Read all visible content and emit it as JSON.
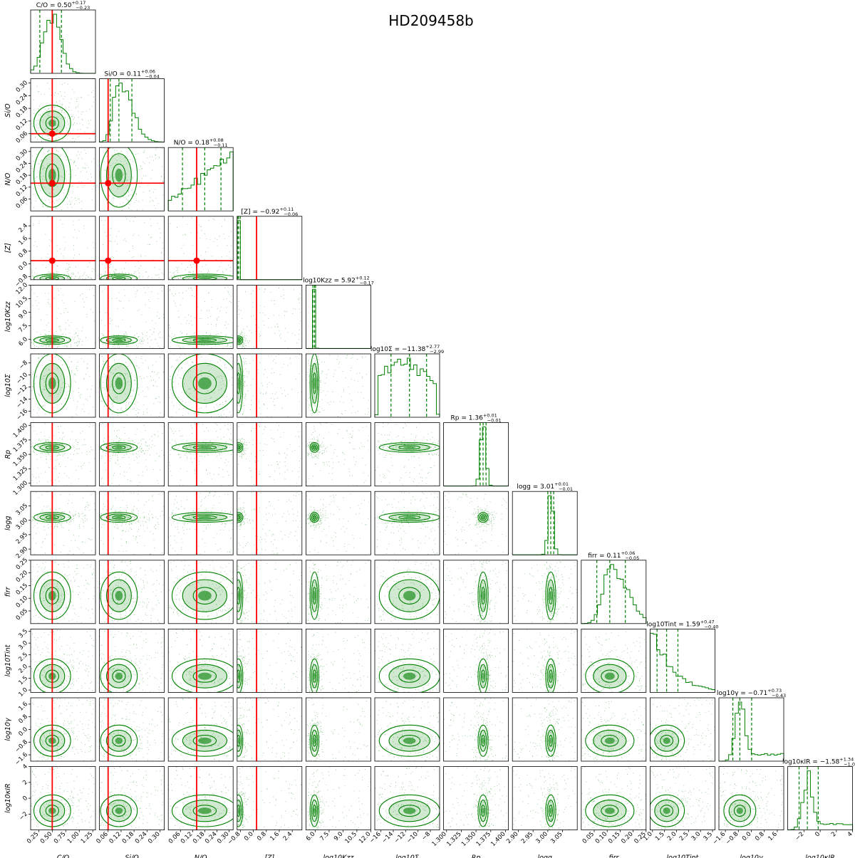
{
  "chart_data": {
    "type": "corner",
    "title": "HD209458b",
    "colors": {
      "samples": "#008000",
      "truth": "#ff0000",
      "frame": "#000000"
    },
    "params": [
      {
        "label": "C/O",
        "title": "C/O = 0.50",
        "errup": "+0.17",
        "errdn": "−0.23",
        "range": [
          0.1,
          1.3
        ],
        "ticks": [
          0.25,
          0.5,
          0.75,
          1.0,
          1.25
        ],
        "tick_labels": [
          "0.25",
          "0.50",
          "0.75",
          "1.00",
          "1.25"
        ],
        "median": 0.5,
        "lo": 0.27,
        "hi": 0.67,
        "truth": 0.5,
        "shape": "peak"
      },
      {
        "label": "Si/O",
        "title": "Si/O = 0.11",
        "errup": "+0.06",
        "errdn": "−0.04",
        "range": [
          0.02,
          0.32
        ],
        "ticks": [
          0.06,
          0.12,
          0.18,
          0.24,
          0.3
        ],
        "tick_labels": [
          "0.06",
          "0.12",
          "0.18",
          "0.24",
          "0.30"
        ],
        "median": 0.11,
        "lo": 0.07,
        "hi": 0.17,
        "truth": 0.06,
        "shape": "skew"
      },
      {
        "label": "N/O",
        "title": "N/O = 0.18",
        "errup": "+0.08",
        "errdn": "−0.11",
        "range": [
          0.0,
          0.32
        ],
        "ticks": [
          0.06,
          0.12,
          0.18,
          0.24,
          0.3
        ],
        "tick_labels": [
          "0.06",
          "0.12",
          "0.18",
          "0.24",
          "0.30"
        ],
        "median": 0.18,
        "lo": 0.07,
        "hi": 0.26,
        "truth": 0.14,
        "shape": "rising"
      },
      {
        "label": "[Z]",
        "title": "[Z] = −0.92",
        "errup": "+0.11",
        "errdn": "−0.06",
        "range": [
          -1.0,
          3.0
        ],
        "ticks": [
          -0.8,
          0.0,
          0.8,
          1.6,
          2.4
        ],
        "tick_labels": [
          "−0.8",
          "0.0",
          "0.8",
          "1.6",
          "2.4"
        ],
        "median": -0.92,
        "lo": -0.98,
        "hi": -0.81,
        "truth": 0.2,
        "shape": "spike"
      },
      {
        "label": "log10Kzz",
        "title": "log10Kzz = 5.92",
        "errup": "+0.12",
        "errdn": "−0.17",
        "range": [
          5.0,
          12.0
        ],
        "ticks": [
          6.0,
          7.5,
          9.0,
          10.5,
          12.0
        ],
        "tick_labels": [
          "6.0",
          "7.5",
          "9.0",
          "10.5",
          "12.0"
        ],
        "median": 5.92,
        "lo": 5.75,
        "hi": 6.04,
        "truth": null,
        "shape": "spike"
      },
      {
        "label": "log10Σ",
        "title": "log10Σ = −11.38",
        "errup": "+2.77",
        "errdn": "−2.99",
        "range": [
          -17.0,
          -6.5
        ],
        "ticks": [
          -16,
          -14,
          -12,
          -10,
          -8
        ],
        "tick_labels": [
          "−16",
          "−14",
          "−12",
          "−10",
          "−8"
        ],
        "median": -11.38,
        "lo": -14.37,
        "hi": -8.61,
        "truth": null,
        "shape": "flat"
      },
      {
        "label": "Rp",
        "title": "Rp = 1.36",
        "errup": "+0.01",
        "errdn": "−0.01",
        "range": [
          1.295,
          1.405
        ],
        "ticks": [
          1.3,
          1.325,
          1.35,
          1.375,
          1.4
        ],
        "tick_labels": [
          "1.300",
          "1.325",
          "1.350",
          "1.375",
          "1.400"
        ],
        "median": 1.362,
        "lo": 1.357,
        "hi": 1.367,
        "truth": null,
        "shape": "narrow"
      },
      {
        "label": "logg",
        "title": "logg = 3.01",
        "errup": "+0.01",
        "errdn": "−0.01",
        "range": [
          2.88,
          3.1
        ],
        "ticks": [
          2.9,
          2.95,
          3.0,
          3.05
        ],
        "tick_labels": [
          "2.90",
          "2.95",
          "3.00",
          "3.05"
        ],
        "median": 3.01,
        "lo": 3.0,
        "hi": 3.02,
        "truth": null,
        "shape": "narrow"
      },
      {
        "label": "firr",
        "title": "firr = 0.11",
        "errup": "+0.06",
        "errdn": "−0.05",
        "range": [
          0.0,
          0.25
        ],
        "ticks": [
          0.05,
          0.1,
          0.15,
          0.2,
          0.25
        ],
        "tick_labels": [
          "0.05",
          "0.10",
          "0.15",
          "0.20",
          "0.25"
        ],
        "median": 0.11,
        "lo": 0.06,
        "hi": 0.17,
        "truth": null,
        "shape": "skew"
      },
      {
        "label": "log10Tint",
        "title": "log10Tint = 1.59",
        "errup": "+0.47",
        "errdn": "−0.40",
        "range": [
          0.9,
          3.6
        ],
        "ticks": [
          1.0,
          1.5,
          2.0,
          2.5,
          3.0,
          3.5
        ],
        "tick_labels": [
          "1.0",
          "1.5",
          "2.0",
          "2.5",
          "3.0",
          "3.5"
        ],
        "median": 1.59,
        "lo": 1.19,
        "hi": 2.06,
        "truth": null,
        "shape": "decay"
      },
      {
        "label": "log10γ",
        "title": "log10γ = −0.71",
        "errup": "+0.73",
        "errdn": "−0.43",
        "range": [
          -2.0,
          2.0
        ],
        "ticks": [
          -1.6,
          -0.8,
          0.0,
          0.8,
          1.6
        ],
        "tick_labels": [
          "−1.6",
          "−0.8",
          "0.0",
          "0.8",
          "1.6"
        ],
        "median": -0.71,
        "lo": -1.14,
        "hi": 0.02,
        "truth": null,
        "shape": "peaktail"
      },
      {
        "label": "log10κIR",
        "title": "log10κIR = −1.58",
        "errup": "+1.34",
        "errdn": "−1.02",
        "range": [
          -4.0,
          4.0
        ],
        "ticks": [
          -2,
          0,
          2,
          4
        ],
        "tick_labels": [
          "−2",
          "0",
          "2",
          "4"
        ],
        "median": -1.58,
        "lo": -2.6,
        "hi": -0.24,
        "truth": null,
        "shape": "peaktail"
      }
    ]
  }
}
